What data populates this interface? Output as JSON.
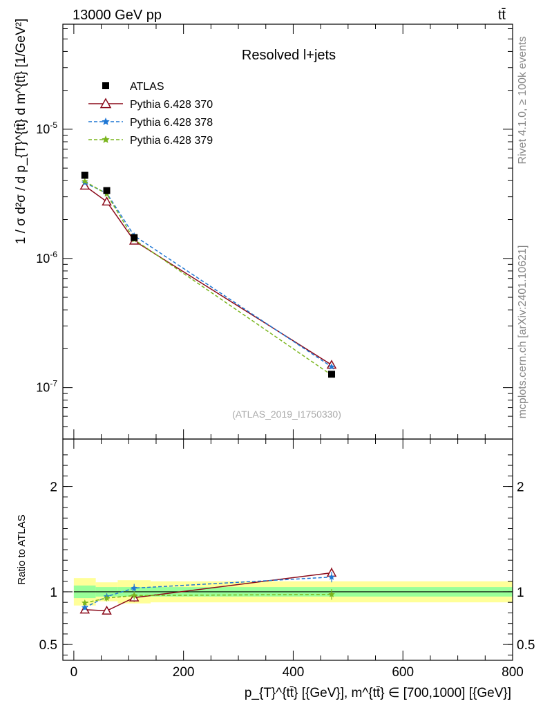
{
  "header": {
    "energy_label": "13000 GeV pp",
    "process_label": "tt̄",
    "rivet_label": "Rivet 4.1.0, ≥ 100k events",
    "mcplots_label": "mcplots.cern.ch [arXiv:2401.10621]"
  },
  "chart_data": [
    {
      "type": "line",
      "title": "Resolved l+jets",
      "watermark": "(ATLAS_2019_I1750330)",
      "ylabel": "1 / σ d²σ / d p_{T}^{tt̄} d m^{tt̄} [1/GeV²]",
      "yscale": "log",
      "ylim": [
        4e-08,
        6.5e-05
      ],
      "xlim": [
        -20,
        800
      ],
      "ytick_labels": [
        "10^-7",
        "10^-6",
        "10^-5"
      ],
      "x": [
        20,
        60,
        110,
        470
      ],
      "series": [
        {
          "name": "ATLAS",
          "color": "#000000",
          "marker": "square",
          "values": [
            4.4e-06,
            3.35e-06,
            1.45e-06,
            1.27e-07
          ]
        },
        {
          "name": "Pythia 6.428 370",
          "color": "#8b0a1a",
          "marker": "triangle",
          "dash": "solid",
          "values": [
            3.65e-06,
            2.75e-06,
            1.37e-06,
            1.5e-07
          ]
        },
        {
          "name": "Pythia 6.428 378",
          "color": "#1f77d4",
          "marker": "star",
          "dash": "dashed",
          "values": [
            3.85e-06,
            3.2e-06,
            1.5e-06,
            1.45e-07
          ]
        },
        {
          "name": "Pythia 6.428 379",
          "color": "#7ab51d",
          "marker": "star",
          "dash": "dashed",
          "values": [
            3.95e-06,
            3.15e-06,
            1.4e-06,
            1.25e-07
          ]
        }
      ]
    },
    {
      "type": "line",
      "ylabel": "Ratio to ATLAS",
      "xlabel": "p_{T}^{tt̄} [{GeV}], m^{tt̄} ∈ [700,1000] [{GeV}]",
      "ylim": [
        0.35,
        2.45
      ],
      "xlim": [
        -20,
        800
      ],
      "xticks": [
        0,
        200,
        400,
        600,
        800
      ],
      "yticks": [
        0.5,
        1,
        2
      ],
      "x": [
        20,
        60,
        110,
        470
      ],
      "series": [
        {
          "name": "Pythia 6.428 370",
          "color": "#8b0a1a",
          "values": [
            0.83,
            0.82,
            0.945,
            1.18
          ],
          "errors": [
            0.02,
            0.03,
            0.04,
            0.05
          ]
        },
        {
          "name": "Pythia 6.428 378",
          "color": "#1f77d4",
          "values": [
            0.85,
            0.955,
            1.035,
            1.14
          ],
          "errors": [
            0.02,
            0.03,
            0.04,
            0.05
          ]
        },
        {
          "name": "Pythia 6.428 379",
          "color": "#7ab51d",
          "values": [
            0.895,
            0.94,
            0.965,
            0.975
          ],
          "errors": [
            0.02,
            0.03,
            0.04,
            0.05
          ]
        }
      ],
      "bands": [
        {
          "x_range": [
            0,
            40
          ],
          "green": [
            0.94,
            1.06
          ],
          "yellow": [
            0.87,
            1.13
          ]
        },
        {
          "x_range": [
            40,
            80
          ],
          "green": [
            0.955,
            1.045
          ],
          "yellow": [
            0.91,
            1.09
          ]
        },
        {
          "x_range": [
            80,
            140
          ],
          "green": [
            0.955,
            1.045
          ],
          "yellow": [
            0.89,
            1.11
          ]
        },
        {
          "x_range": [
            140,
            800
          ],
          "green": [
            0.955,
            1.045
          ],
          "yellow": [
            0.9,
            1.1
          ]
        }
      ]
    }
  ]
}
